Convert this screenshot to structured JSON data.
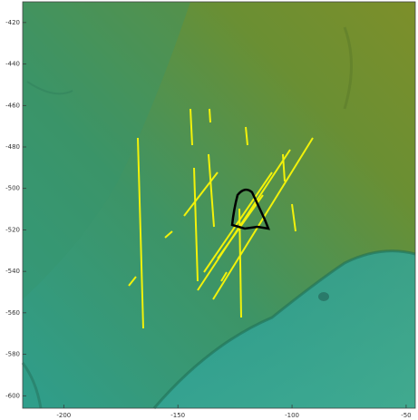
{
  "chart_data": {
    "type": "map",
    "xlim": [
      -218,
      -46
    ],
    "ylim": [
      -606,
      -410
    ],
    "xticks": [
      -200,
      -150,
      -100,
      -50
    ],
    "yticks": [
      -600,
      -580,
      -560,
      -540,
      -520,
      -500,
      -480,
      -460,
      -440,
      -420
    ]
  }
}
